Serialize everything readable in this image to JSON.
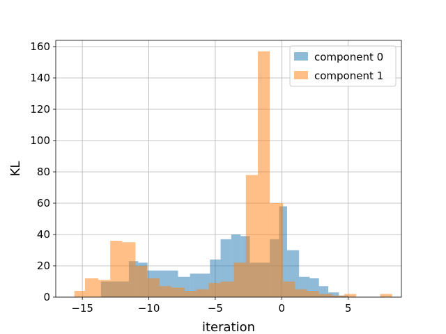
{
  "chart_data": {
    "type": "bar",
    "subtype": "histogram-overlay",
    "title": "",
    "xlabel": "iteration",
    "ylabel": "KL",
    "xlim": [
      -17,
      9
    ],
    "ylim": [
      0,
      164
    ],
    "xticks": [
      -15,
      -10,
      -5,
      0,
      5
    ],
    "xtick_labels": [
      "−15",
      "−10",
      "−5",
      "0",
      "5"
    ],
    "yticks": [
      0,
      20,
      40,
      60,
      80,
      100,
      120,
      140,
      160
    ],
    "ytick_labels": [
      "0",
      "20",
      "40",
      "60",
      "80",
      "100",
      "120",
      "140",
      "160"
    ],
    "grid": true,
    "legend_position": "top-right",
    "series": [
      {
        "name": "component 0",
        "color": "#1f77b4",
        "opacity": 0.5,
        "bins": [
          {
            "x0": -15.6,
            "x1": -14.8,
            "value": 0
          },
          {
            "x0": -13.6,
            "x1": -11.5,
            "value": 10
          },
          {
            "x0": -11.5,
            "x1": -10.8,
            "value": 23
          },
          {
            "x0": -10.8,
            "x1": -10.1,
            "value": 22
          },
          {
            "x0": -10.1,
            "x1": -7.8,
            "value": 17
          },
          {
            "x0": -7.8,
            "x1": -6.9,
            "value": 13
          },
          {
            "x0": -6.9,
            "x1": -5.4,
            "value": 15
          },
          {
            "x0": -5.4,
            "x1": -4.6,
            "value": 24
          },
          {
            "x0": -4.6,
            "x1": -3.8,
            "value": 37
          },
          {
            "x0": -3.8,
            "x1": -3.1,
            "value": 40
          },
          {
            "x0": -3.1,
            "x1": -2.4,
            "value": 39
          },
          {
            "x0": -2.4,
            "x1": -0.9,
            "value": 22
          },
          {
            "x0": -0.9,
            "x1": -0.2,
            "value": 37
          },
          {
            "x0": -0.2,
            "x1": 0.4,
            "value": 58
          },
          {
            "x0": 0.4,
            "x1": 1.3,
            "value": 30
          },
          {
            "x0": 1.3,
            "x1": 2.1,
            "value": 13
          },
          {
            "x0": 2.1,
            "x1": 2.8,
            "value": 12
          },
          {
            "x0": 2.8,
            "x1": 3.5,
            "value": 7
          },
          {
            "x0": 3.5,
            "x1": 4.3,
            "value": 3
          },
          {
            "x0": 4.3,
            "x1": 5.0,
            "value": 1
          }
        ]
      },
      {
        "name": "component 1",
        "color": "#ff7f0e",
        "opacity": 0.5,
        "bins": [
          {
            "x0": -15.6,
            "x1": -14.8,
            "value": 4
          },
          {
            "x0": -14.8,
            "x1": -13.8,
            "value": 12
          },
          {
            "x0": -13.8,
            "x1": -12.9,
            "value": 11
          },
          {
            "x0": -12.9,
            "x1": -12.0,
            "value": 36
          },
          {
            "x0": -12.0,
            "x1": -11.0,
            "value": 35
          },
          {
            "x0": -11.0,
            "x1": -10.1,
            "value": 20
          },
          {
            "x0": -10.1,
            "x1": -9.2,
            "value": 12
          },
          {
            "x0": -9.2,
            "x1": -8.3,
            "value": 7
          },
          {
            "x0": -8.3,
            "x1": -7.3,
            "value": 6
          },
          {
            "x0": -7.3,
            "x1": -6.4,
            "value": 4
          },
          {
            "x0": -6.4,
            "x1": -5.5,
            "value": 5
          },
          {
            "x0": -5.5,
            "x1": -4.6,
            "value": 9
          },
          {
            "x0": -4.6,
            "x1": -3.6,
            "value": 10
          },
          {
            "x0": -3.6,
            "x1": -2.7,
            "value": 22
          },
          {
            "x0": -2.7,
            "x1": -1.8,
            "value": 78
          },
          {
            "x0": -1.8,
            "x1": -0.9,
            "value": 157
          },
          {
            "x0": -0.9,
            "x1": 0.1,
            "value": 60
          },
          {
            "x0": 0.1,
            "x1": 1.0,
            "value": 10
          },
          {
            "x0": 1.0,
            "x1": 1.9,
            "value": 5
          },
          {
            "x0": 1.9,
            "x1": 2.8,
            "value": 4
          },
          {
            "x0": 2.8,
            "x1": 3.8,
            "value": 2
          },
          {
            "x0": 3.8,
            "x1": 4.7,
            "value": 1
          },
          {
            "x0": 4.7,
            "x1": 5.6,
            "value": 2
          },
          {
            "x0": 5.6,
            "x1": 6.5,
            "value": 0
          },
          {
            "x0": 6.5,
            "x1": 7.4,
            "value": 0
          },
          {
            "x0": 7.4,
            "x1": 8.3,
            "value": 2
          }
        ]
      }
    ]
  }
}
